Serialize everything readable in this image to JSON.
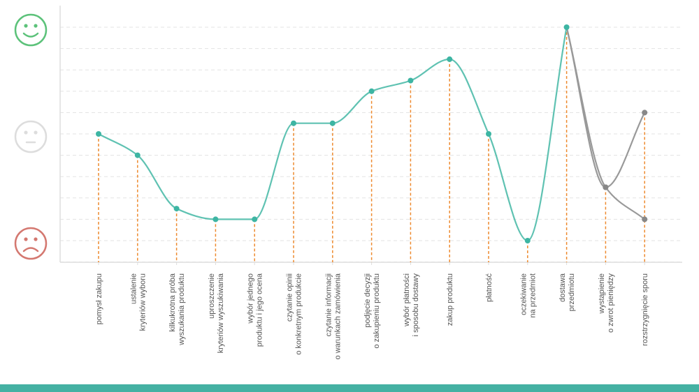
{
  "chart_data": {
    "type": "line",
    "title": "",
    "xlabel": "",
    "ylabel": "",
    "ylim": [
      0,
      11
    ],
    "grid": true,
    "categories": [
      "pomysł zakupu",
      "ustalenie\nkryteriów wyboru",
      "kilkukrotna próba\nwyszukania produktu",
      "uproszczenie\nkryteriów wyszukiwania",
      "wybór jednego\nproduktu i jego ocena",
      "czytanie opinii\no konkretnym produkcie",
      "czytanie informacji\no warunkach zamówienia",
      "podjęcie decyzji\no zakupieniu produktu",
      "wybór płatności\ni sposobu dostawy",
      "zakup produktu",
      "płatność",
      "oczekiwanie\nna przedmiot",
      "dostawa\nprzedmiotu",
      "wystąpienie\no zwrot pieniędzy",
      "rozstrzygnięcie sporu"
    ],
    "series": [
      {
        "color": "#5fc2b2",
        "values": [
          6,
          5,
          2.5,
          2,
          2,
          6.5,
          6.5,
          8,
          8.5,
          9.5,
          6,
          1,
          11,
          null,
          null
        ]
      },
      {
        "color": "#999999",
        "values": [
          null,
          null,
          null,
          null,
          null,
          null,
          null,
          null,
          null,
          null,
          null,
          null,
          11,
          3.5,
          2
        ]
      },
      {
        "color": "#999999",
        "values": [
          null,
          null,
          null,
          null,
          null,
          null,
          null,
          null,
          null,
          null,
          null,
          null,
          11,
          3.5,
          7
        ]
      }
    ],
    "y_icons": [
      {
        "name": "happy-face-icon",
        "level": 11,
        "color": "#5cc27a"
      },
      {
        "name": "neutral-face-icon",
        "level": 6,
        "color": "#dddddd"
      },
      {
        "name": "sad-face-icon",
        "level": 1,
        "color": "#d47870"
      }
    ]
  },
  "colors": {
    "accent": "#45b1a3",
    "dropline": "#ee8a2f",
    "grid": "#e3e3e3",
    "axis": "#dddddd",
    "point": "#3db5a3",
    "gray_point": "#888888"
  }
}
